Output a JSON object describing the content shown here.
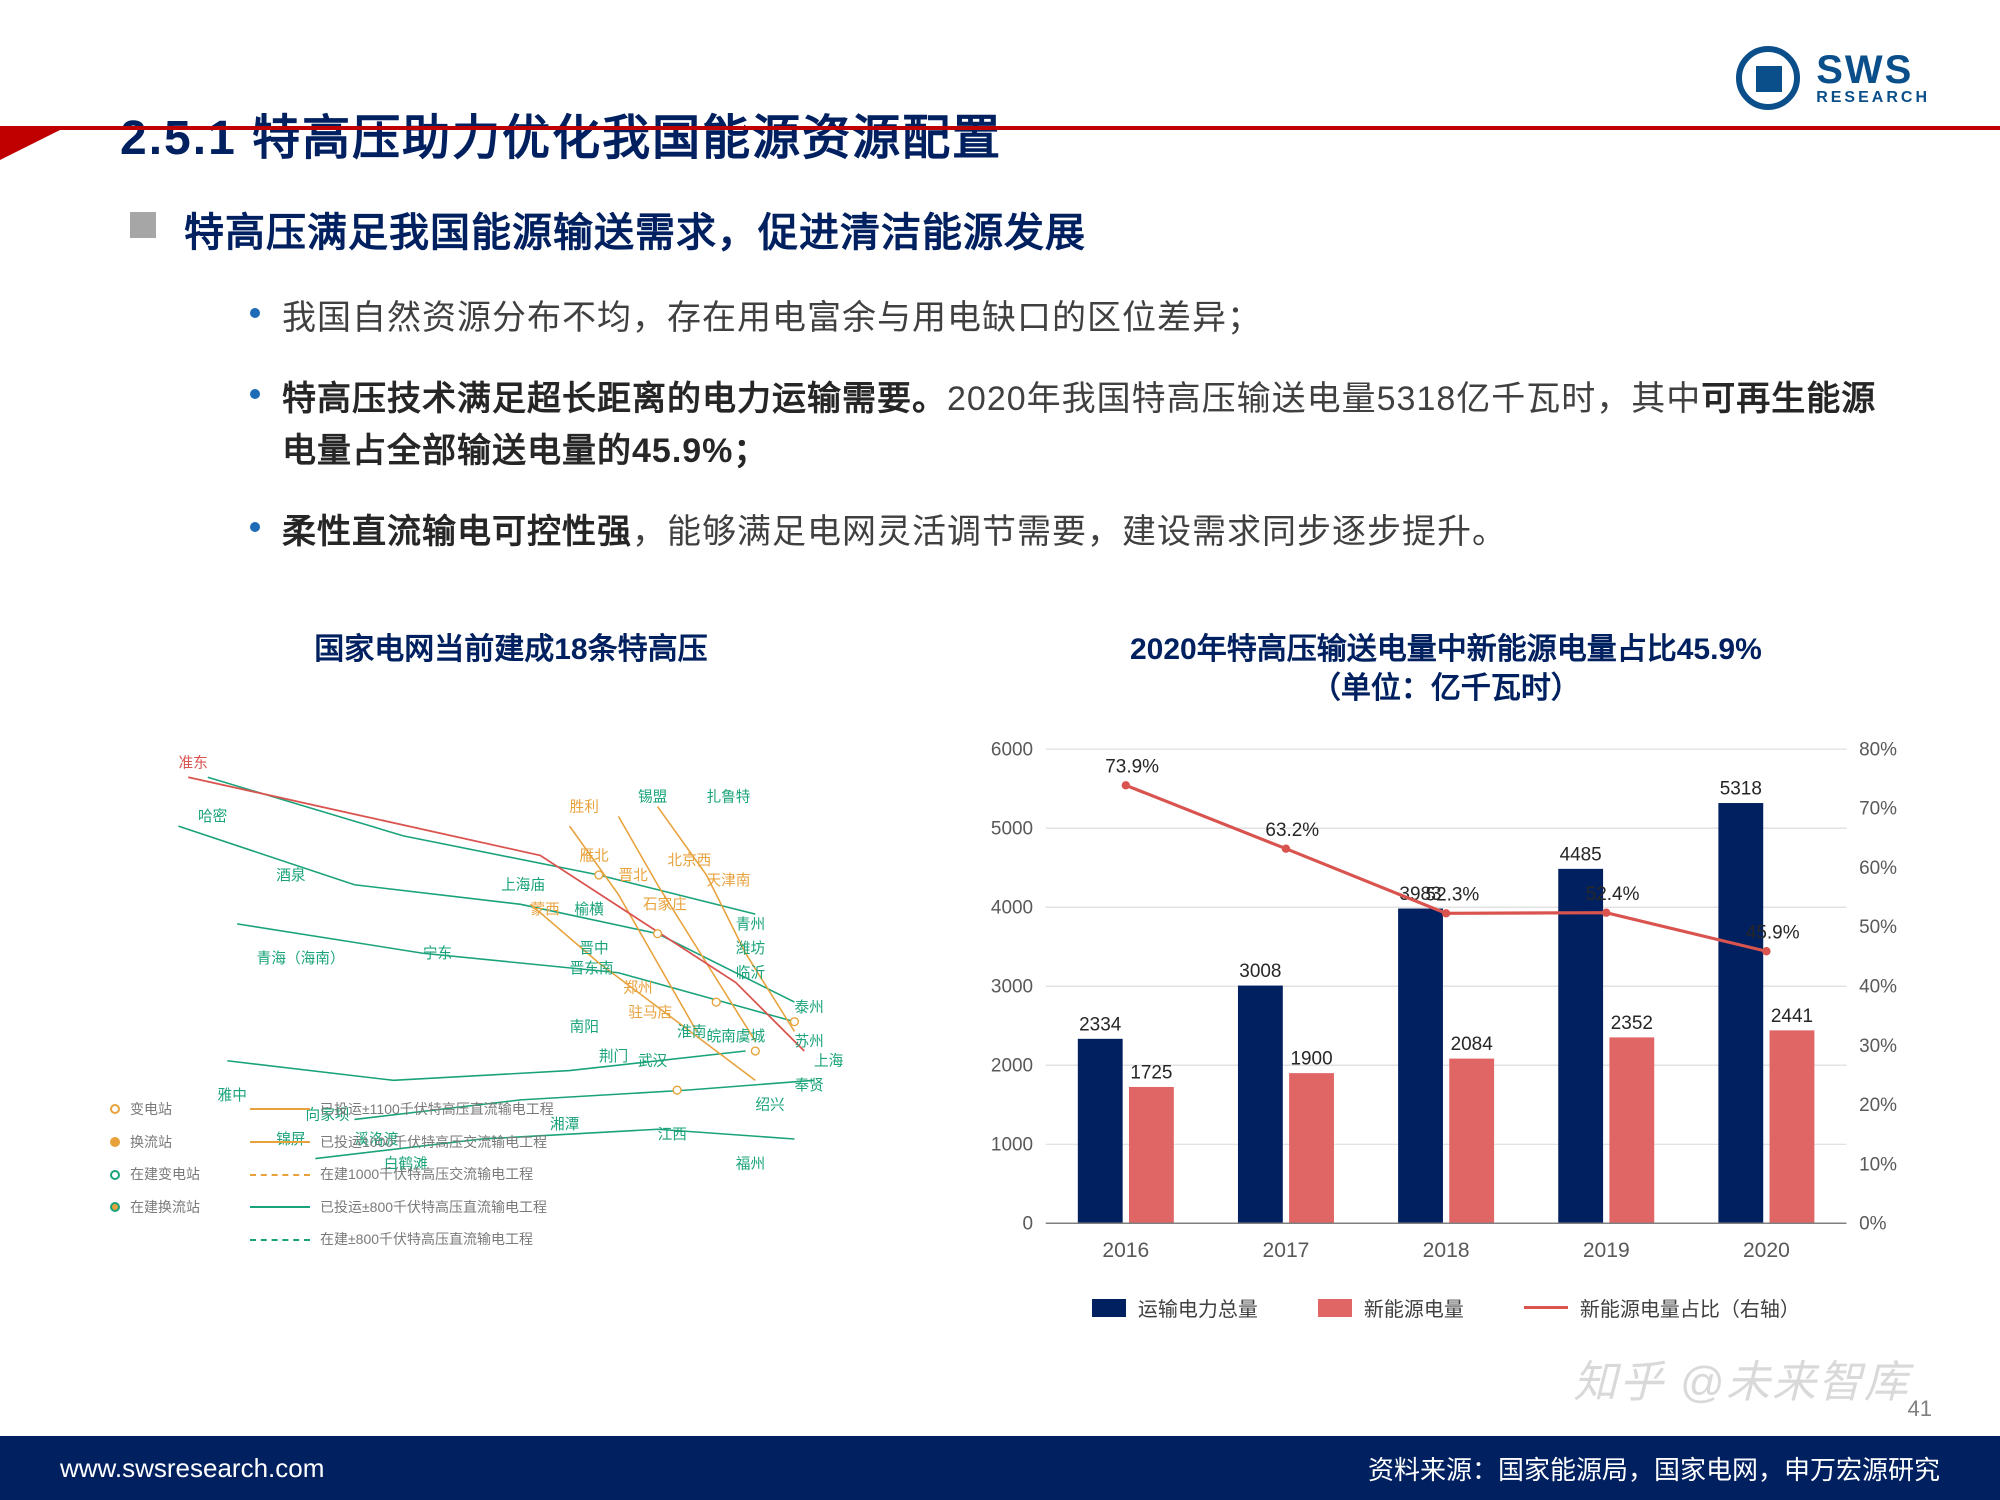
{
  "header": {
    "title": "2.5.1 特高压助力优化我国能源资源配置",
    "logo_main": "SWS",
    "logo_sub": "RESEARCH",
    "accent_color": "#c00000",
    "title_color": "#002060"
  },
  "section": {
    "heading": "特高压满足我国能源输送需求，促进清洁能源发展",
    "bullets": [
      {
        "plain": "我国自然资源分布不均，存在用电富余与用电缺口的区位差异；"
      },
      {
        "bold1": "特高压技术满足超长距离的电力运输需要。",
        "plain": "2020年我国特高压输送电量5318亿千瓦时，其中",
        "bold2": "可再生能源电量占全部输送电量的45.9%；"
      },
      {
        "bold1": "柔性直流输电可控性强",
        "plain": "，能够满足电网灵活调节需要，建设需求同步逐步提升。"
      }
    ]
  },
  "left_chart": {
    "title": "国家电网当前建成18条特高压",
    "cities_green": [
      "哈密",
      "酒泉",
      "青海（海南）",
      "雅中",
      "宁东",
      "锡盟",
      "扎鲁特",
      "上海庙",
      "蒙西",
      "榆横",
      "晋北",
      "晋东南",
      "晋中",
      "南阳",
      "荆门",
      "武汉",
      "向家坝",
      "溪洛渡",
      "白鹤滩",
      "锦屏",
      "湘潭",
      "江西",
      "福州",
      "绍兴",
      "上海",
      "奉贤",
      "苏州",
      "泰州",
      "临沂",
      "潍坊",
      "青州",
      "淮南",
      "皖南",
      "虞城"
    ],
    "cities_orange": [
      "胜利",
      "雁北",
      "北京西",
      "天津南",
      "石家庄",
      "驻马店",
      "郑州"
    ],
    "cities_red": [
      "准东"
    ],
    "legend": {
      "points": [
        "变电站",
        "换流站",
        "在建变电站",
        "在建换流站"
      ],
      "lines": [
        "已投运±1100千伏特高压直流输电工程",
        "已投运1000千伏特高压交流输电工程",
        "已投运±800千伏特高压直流输电工程",
        "在建1000千伏特高压交流输电工程",
        "在建±800千伏特高压直流输电工程"
      ]
    }
  },
  "right_chart": {
    "title_l1": "2020年特高压输送电量中新能源电量占比45.9%",
    "title_l2": "（单位：亿千瓦时）",
    "categories": [
      "2016",
      "2017",
      "2018",
      "2019",
      "2020"
    ],
    "series_total": {
      "label": "运输电力总量",
      "color": "#002060",
      "values": [
        2334,
        3008,
        3983,
        4485,
        5318
      ]
    },
    "series_new": {
      "label": "新能源电量",
      "color": "#e06666",
      "values": [
        1725,
        1900,
        2084,
        2352,
        2441
      ]
    },
    "series_pct": {
      "label": "新能源电量占比（右轴）",
      "color": "#d9534f",
      "values": [
        73.9,
        63.2,
        52.3,
        52.4,
        45.9
      ]
    },
    "y_left": {
      "min": 0,
      "max": 6000,
      "step": 1000
    },
    "y_right": {
      "min": 0,
      "max": 80,
      "step": 10,
      "suffix": "%"
    },
    "grid_color": "#d9d9d9",
    "label_fontsize": 18
  },
  "footer": {
    "url": "www.swsresearch.com",
    "source": "资料来源：国家能源局，国家电网，申万宏源研究",
    "page": "41",
    "watermark": "知乎 @未来智库"
  }
}
